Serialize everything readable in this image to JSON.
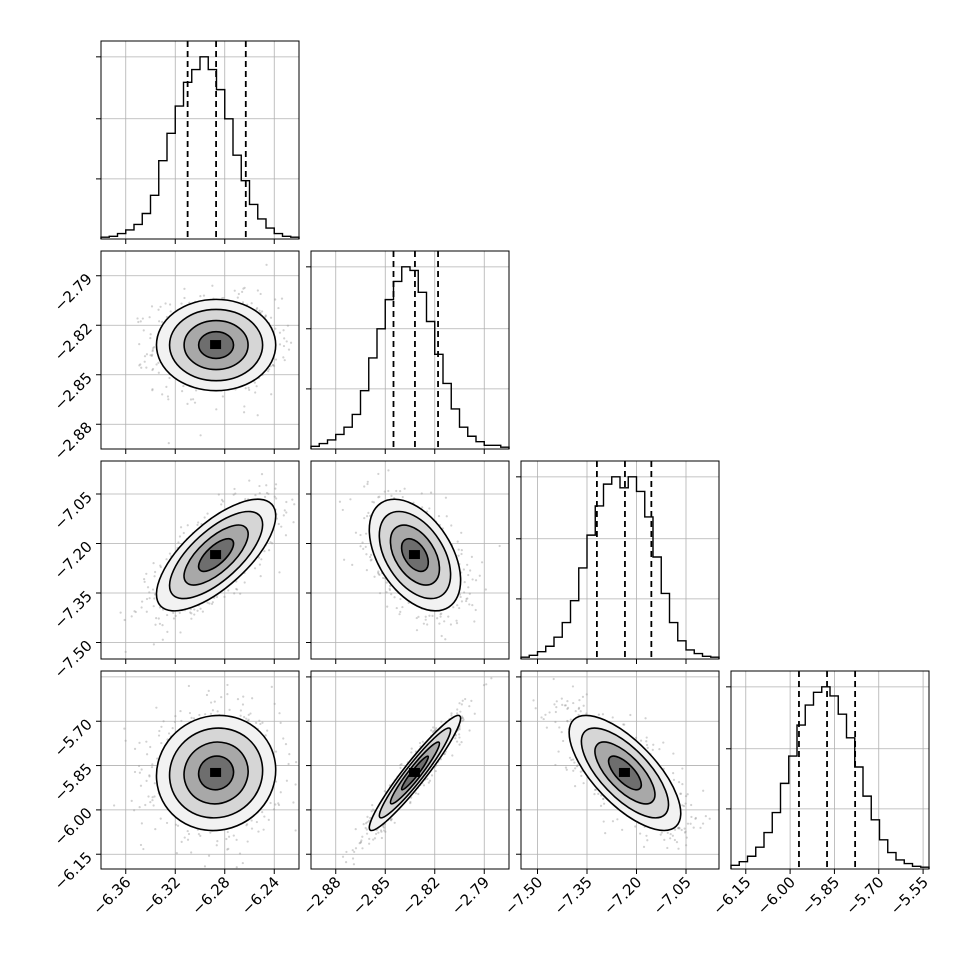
{
  "chart_data": {
    "type": "corner",
    "parameters": [
      {
        "median": -6.287,
        "q16": -6.31,
        "q84": -6.263,
        "range": [
          -6.38,
          -6.22
        ],
        "ticks": [
          -6.36,
          -6.32,
          -6.28,
          -6.24
        ],
        "tick_labels": [
          "−6.36",
          "−6.32",
          "−6.28",
          "−6.24"
        ],
        "hist": [
          0.01,
          0.015,
          0.03,
          0.05,
          0.08,
          0.14,
          0.24,
          0.43,
          0.58,
          0.73,
          0.86,
          0.93,
          1.0,
          0.93,
          0.82,
          0.66,
          0.46,
          0.32,
          0.19,
          0.11,
          0.06,
          0.03,
          0.015,
          0.01
        ]
      },
      {
        "median": -2.832,
        "q16": -2.845,
        "q84": -2.818,
        "range": [
          -2.895,
          -2.775
        ],
        "ticks": [
          -2.88,
          -2.85,
          -2.82,
          -2.79
        ],
        "tick_labels": [
          "−2.88",
          "−2.85",
          "−2.82",
          "−2.79"
        ],
        "hist": [
          0.015,
          0.03,
          0.05,
          0.08,
          0.12,
          0.19,
          0.32,
          0.5,
          0.66,
          0.82,
          0.92,
          1.0,
          0.98,
          0.86,
          0.7,
          0.52,
          0.36,
          0.22,
          0.12,
          0.07,
          0.04,
          0.02,
          0.02,
          0.01
        ]
      },
      {
        "median": -7.235,
        "q16": -7.32,
        "q84": -7.155,
        "range": [
          -7.55,
          -6.95
        ],
        "ticks": [
          -7.5,
          -7.35,
          -7.2,
          -7.05
        ],
        "tick_labels": [
          "−7.50",
          "−7.35",
          "−7.20",
          "−7.05"
        ],
        "hist": [
          0.01,
          0.02,
          0.04,
          0.07,
          0.12,
          0.2,
          0.32,
          0.5,
          0.68,
          0.84,
          0.96,
          1.0,
          0.94,
          1.0,
          0.92,
          0.78,
          0.56,
          0.36,
          0.2,
          0.1,
          0.05,
          0.03,
          0.015,
          0.01
        ]
      },
      {
        "median": -5.875,
        "q16": -5.97,
        "q84": -5.78,
        "range": [
          -6.2,
          -5.53
        ],
        "ticks": [
          -6.15,
          -6.0,
          -5.85,
          -5.7,
          -5.55
        ],
        "tick_labels": [
          "−6.15",
          "−6.00",
          "−5.85",
          "−5.70",
          "−5.55"
        ],
        "hist": [
          0.02,
          0.04,
          0.07,
          0.12,
          0.2,
          0.31,
          0.47,
          0.62,
          0.79,
          0.9,
          0.97,
          1.0,
          0.95,
          0.85,
          0.72,
          0.56,
          0.4,
          0.27,
          0.16,
          0.09,
          0.05,
          0.03,
          0.015,
          0.01
        ]
      }
    ],
    "pairs": [
      {
        "row": 1,
        "col": 0,
        "corr": 0.0
      },
      {
        "row": 2,
        "col": 0,
        "corr": 0.7
      },
      {
        "row": 2,
        "col": 1,
        "corr": -0.45
      },
      {
        "row": 3,
        "col": 0,
        "corr": 0.05
      },
      {
        "row": 3,
        "col": 1,
        "corr": 0.95
      },
      {
        "row": 3,
        "col": 2,
        "corr": -0.7
      }
    ],
    "quantiles": [
      0.16,
      0.5,
      0.84
    ],
    "grid": true,
    "colors": {
      "scatter": "#9a9a9a",
      "contour": "#000000",
      "hist": "#000000",
      "grid": "#b0b0b0"
    }
  }
}
